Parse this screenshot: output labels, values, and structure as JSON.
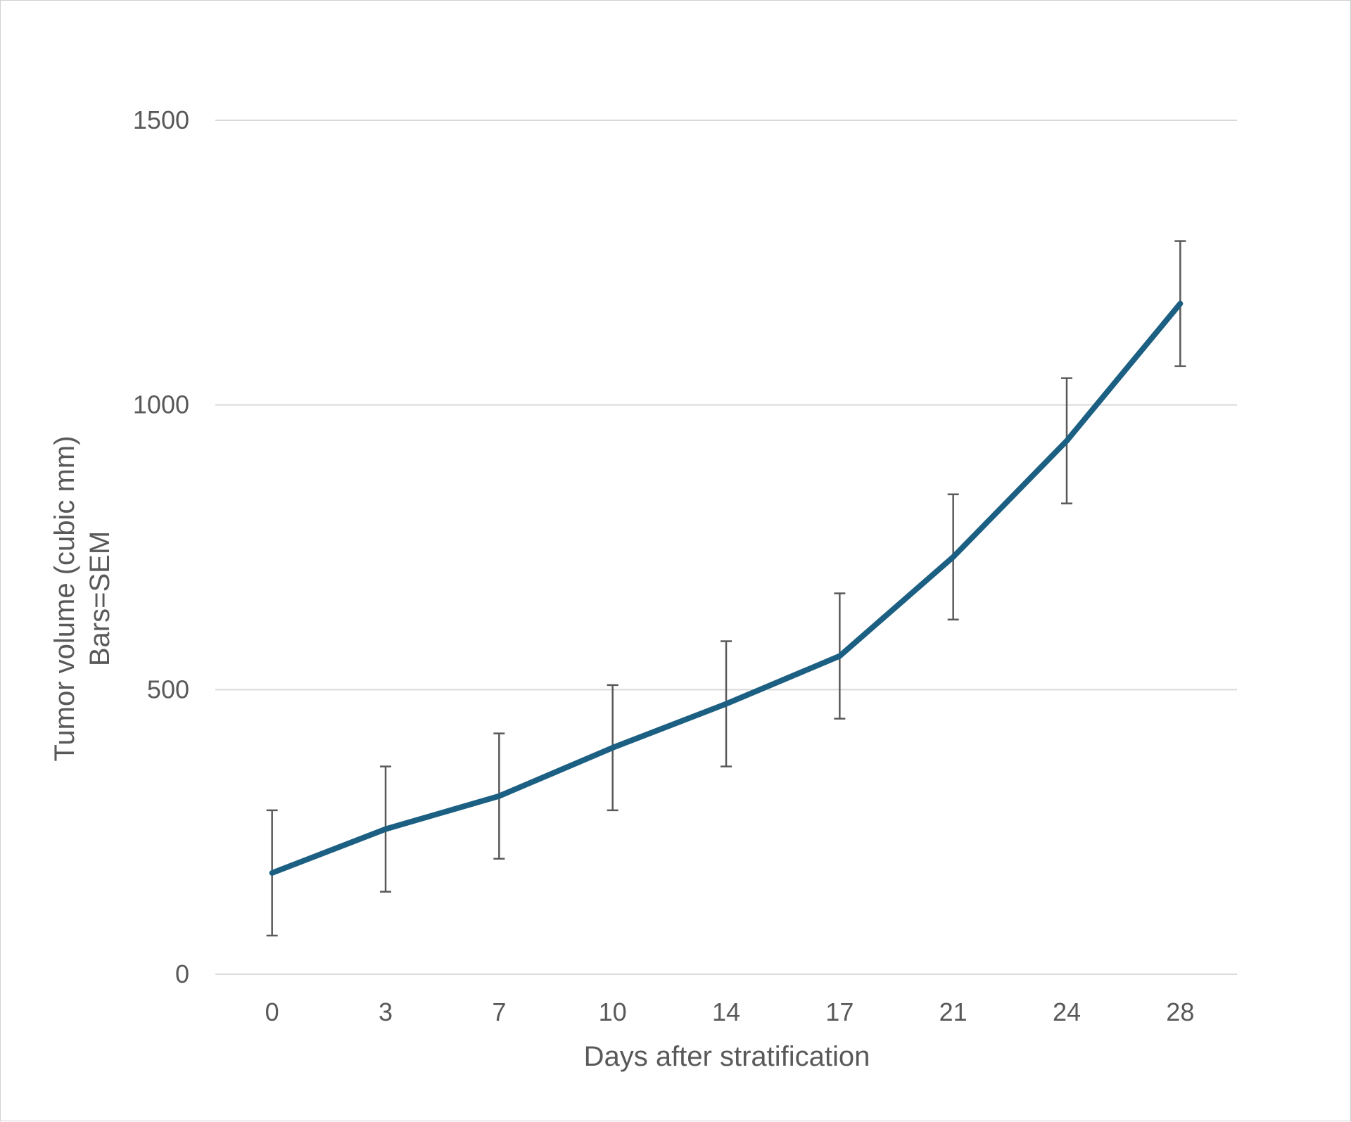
{
  "chart_data": {
    "type": "line",
    "xlabel": "Days after stratification",
    "ylabel": [
      "Tumor volume (cubic mm)",
      "Bars=SEM"
    ],
    "categories": [
      "0",
      "3",
      "7",
      "10",
      "14",
      "17",
      "21",
      "24",
      "28"
    ],
    "ylim": [
      0,
      1500
    ],
    "yticks": [
      0,
      500,
      1000,
      1500
    ],
    "grid": true,
    "series": [
      {
        "values": [
          178,
          255,
          313,
          398,
          475,
          559,
          733,
          937,
          1178
        ],
        "error": [
          110,
          110,
          110,
          110,
          110,
          110,
          110,
          110,
          110
        ],
        "color": "#1b5f82"
      }
    ],
    "errorbar_color": "#595959",
    "gridline_color": "#d9d9d9"
  }
}
